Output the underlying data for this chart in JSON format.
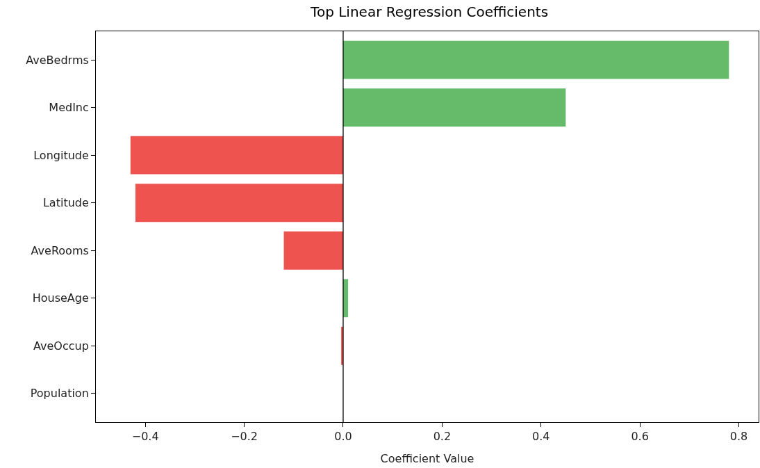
{
  "chart_data": {
    "type": "bar",
    "orientation": "horizontal",
    "title": "Top Linear Regression Coefficients",
    "xlabel": "Coefficient Value",
    "categories": [
      "AveBedrms",
      "MedInc",
      "Longitude",
      "Latitude",
      "AveRooms",
      "HouseAge",
      "AveOccup",
      "Population"
    ],
    "values": [
      0.78,
      0.45,
      -0.43,
      -0.42,
      -0.12,
      0.01,
      -0.004,
      0
    ],
    "colors": [
      "#66bb6a",
      "#66bb6a",
      "#ef5350",
      "#ef5350",
      "#ef5350",
      "#66bb6a",
      "#ef5350",
      "#66bb6a"
    ],
    "xlim": [
      -0.5,
      0.84
    ],
    "xticks": [
      {
        "value": -0.4,
        "label": "−0.4"
      },
      {
        "value": -0.2,
        "label": "−0.2"
      },
      {
        "value": 0,
        "label": "0.0"
      },
      {
        "value": 0.2,
        "label": "0.2"
      },
      {
        "value": 0.4,
        "label": "0.4"
      },
      {
        "value": 0.6,
        "label": "0.6"
      },
      {
        "value": 0.8,
        "label": "0.8"
      }
    ],
    "ref_lines": [
      {
        "axis": "x",
        "value": 0,
        "color": "#000000"
      }
    ],
    "grid": false
  }
}
